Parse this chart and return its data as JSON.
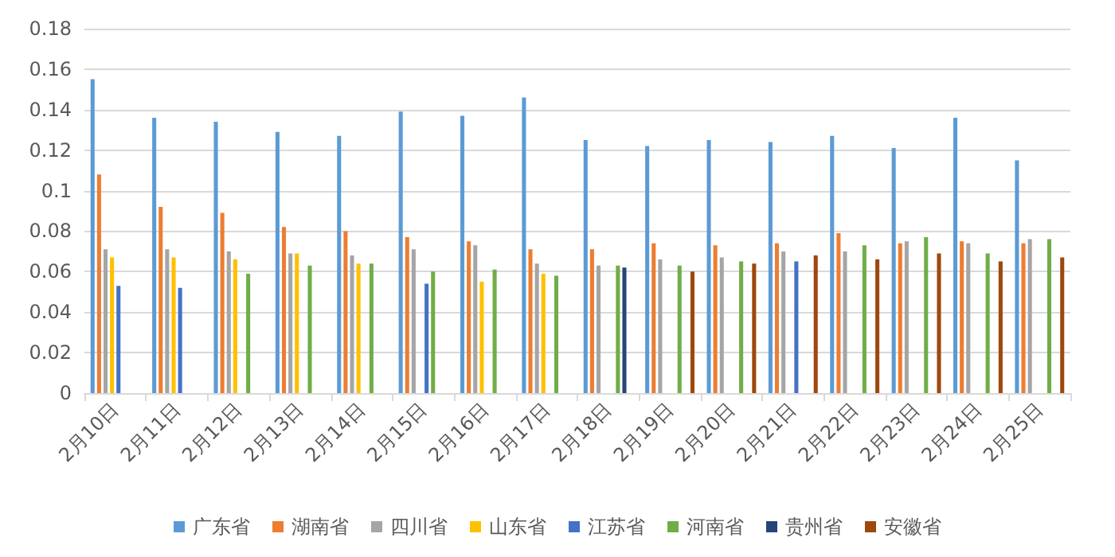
{
  "chart_data": {
    "type": "bar",
    "categories": [
      "2月10日",
      "2月11日",
      "2月12日",
      "2月13日",
      "2月14日",
      "2月15日",
      "2月16日",
      "2月17日",
      "2月18日",
      "2月19日",
      "2月20日",
      "2月21日",
      "2月22日",
      "2月23日",
      "2月24日",
      "2月25日"
    ],
    "series": [
      {
        "name": "广东省",
        "color": "#5b9bd5",
        "values": [
          0.155,
          0.136,
          0.134,
          0.129,
          0.127,
          0.139,
          0.137,
          0.146,
          0.125,
          0.122,
          0.125,
          0.124,
          0.127,
          0.121,
          0.136,
          0.115
        ]
      },
      {
        "name": "湖南省",
        "color": "#ed7d31",
        "values": [
          0.108,
          0.092,
          0.089,
          0.082,
          0.08,
          0.077,
          0.075,
          0.071,
          0.071,
          0.074,
          0.073,
          0.074,
          0.079,
          0.074,
          0.075,
          0.074
        ]
      },
      {
        "name": "四川省",
        "color": "#a5a5a5",
        "values": [
          0.071,
          0.071,
          0.07,
          0.069,
          0.068,
          0.071,
          0.073,
          0.064,
          0.063,
          0.066,
          0.067,
          0.07,
          0.07,
          0.075,
          0.074,
          0.076
        ]
      },
      {
        "name": "山东省",
        "color": "#ffc000",
        "values": [
          0.067,
          0.067,
          0.066,
          0.069,
          0.064,
          null,
          0.055,
          0.059,
          null,
          null,
          null,
          null,
          null,
          null,
          null,
          null
        ]
      },
      {
        "name": "江苏省",
        "color": "#4472c4",
        "values": [
          0.053,
          0.052,
          null,
          null,
          null,
          0.054,
          null,
          null,
          null,
          null,
          null,
          0.065,
          null,
          null,
          null,
          null
        ]
      },
      {
        "name": "河南省",
        "color": "#70ad47",
        "values": [
          null,
          null,
          0.059,
          0.063,
          0.064,
          0.06,
          0.061,
          0.058,
          0.063,
          0.063,
          0.065,
          null,
          0.073,
          0.077,
          0.069,
          0.076
        ]
      },
      {
        "name": "贵州省",
        "color": "#264478",
        "values": [
          null,
          null,
          null,
          null,
          null,
          null,
          null,
          null,
          0.062,
          null,
          null,
          null,
          null,
          null,
          null,
          null
        ]
      },
      {
        "name": "安徽省",
        "color": "#9e480e",
        "values": [
          null,
          null,
          null,
          null,
          null,
          null,
          null,
          null,
          null,
          0.06,
          0.064,
          0.068,
          0.066,
          0.069,
          0.065,
          0.067
        ]
      }
    ],
    "ylim": [
      0,
      0.18
    ],
    "yticks": [
      0,
      0.02,
      0.04,
      0.06,
      0.08,
      0.1,
      0.12,
      0.14,
      0.16,
      0.18
    ],
    "grid": "y",
    "legend": "bottom"
  }
}
